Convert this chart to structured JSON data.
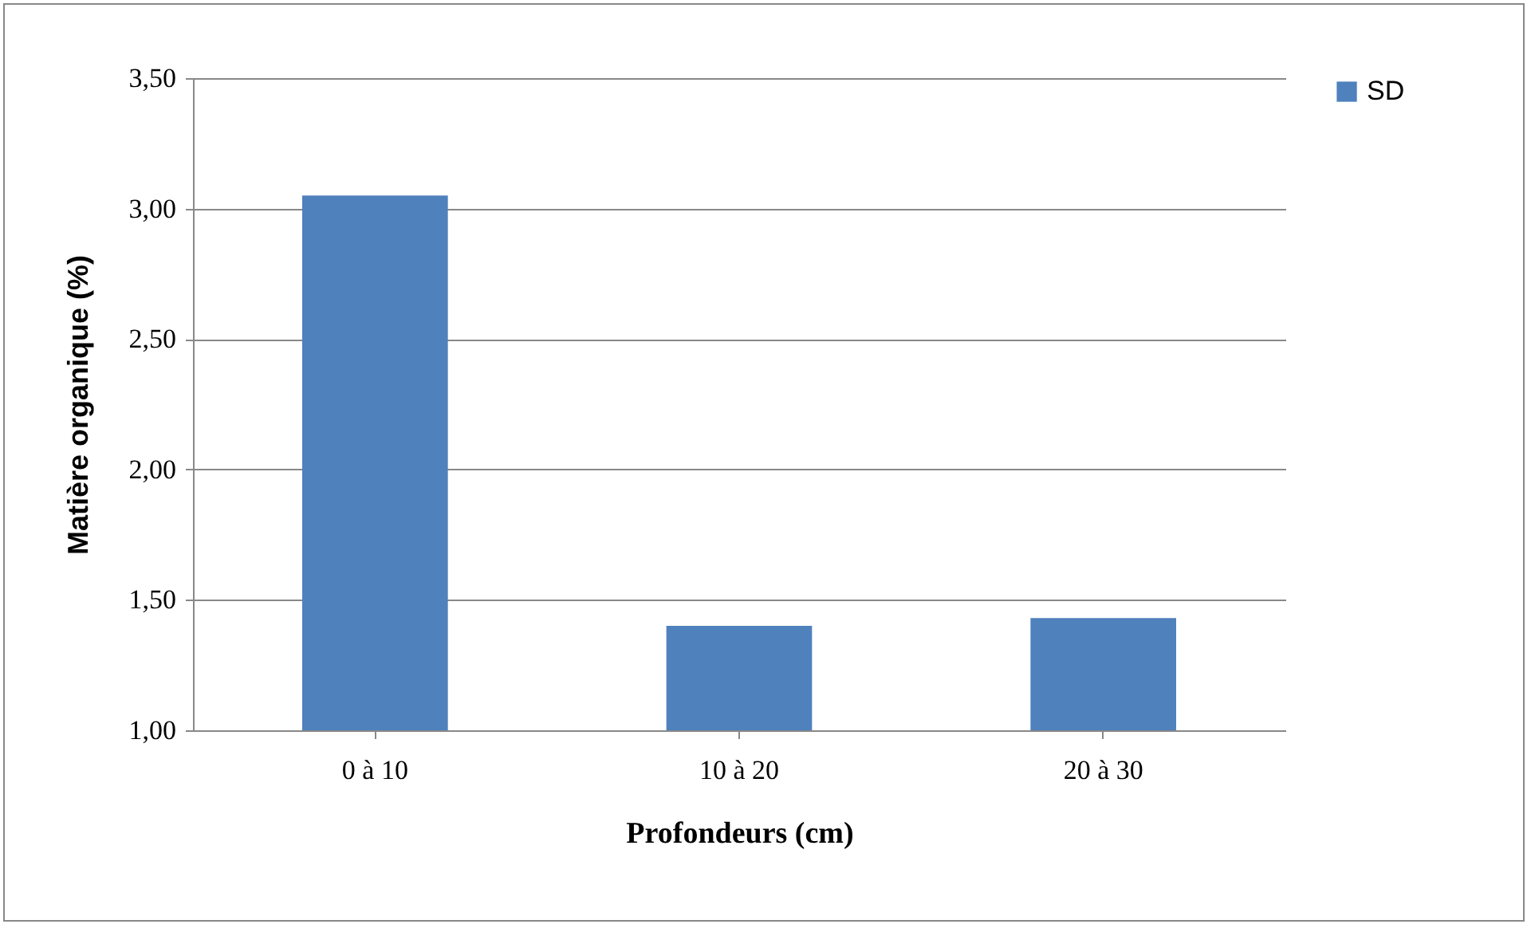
{
  "chart_data": {
    "type": "bar",
    "xlabel": "Profondeurs (cm)",
    "ylabel": "Matière organique (%)",
    "categories": [
      "0 à 10",
      "10 à 20",
      "20 à 30"
    ],
    "series": [
      {
        "name": "SD",
        "color": "#4f81bd",
        "values": [
          3.05,
          1.4,
          1.43
        ]
      }
    ],
    "ylim": [
      1,
      3.5
    ],
    "yticks": [
      {
        "value": 1,
        "label": "1,00"
      },
      {
        "value": 1.5,
        "label": "1,50"
      },
      {
        "value": 2,
        "label": "2,00"
      },
      {
        "value": 2.5,
        "label": "2,50"
      },
      {
        "value": 3,
        "label": "3,00"
      },
      {
        "value": 3.5,
        "label": "3,50"
      }
    ],
    "grid": "y",
    "legend": "right"
  }
}
